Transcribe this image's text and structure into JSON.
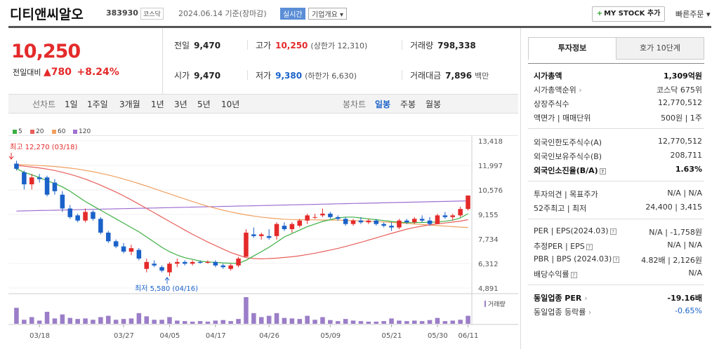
{
  "header": {
    "stock_name": "디티앤씨알오",
    "stock_code": "383930",
    "market": "코스닥",
    "date": "2024.06.14 기준(장마감)",
    "realtime_label": "실시간",
    "overview_label": "기업개요 ▾",
    "mystock_label": "MY STOCK 추가",
    "mystock_plus": "+",
    "quick_order": "빠른주문 ▾"
  },
  "price": {
    "current": "10,250",
    "change_label": "전일대비",
    "change_arrow": "▲",
    "change": "780",
    "change_pct": "+8.24%"
  },
  "quotes": {
    "prev_label": "전일",
    "prev": "9,470",
    "high_label": "고가",
    "high": "10,250",
    "high_limit": "(상한가 12,310)",
    "volume_label": "거래량",
    "volume": "798,338",
    "open_label": "시가",
    "open": "9,470",
    "low_label": "저가",
    "low": "9,380",
    "low_limit": "(하한가 6,630)",
    "amount_label": "거래대금",
    "amount": "7,896",
    "amount_unit": "백만"
  },
  "period_bar": {
    "line_label": "선차트",
    "periods": [
      "1일",
      "1주일",
      "3개월",
      "1년",
      "3년",
      "5년",
      "10년"
    ],
    "candle_label": "봉차트",
    "candles": [
      "일봉",
      "주봉",
      "월봉"
    ],
    "active_candle": "일봉"
  },
  "legend": [
    {
      "label": "5",
      "color": "#3cb043"
    },
    {
      "label": "20",
      "color": "#e8605c"
    },
    {
      "label": "60",
      "color": "#f0a060"
    },
    {
      "label": "120",
      "color": "#a070d0"
    }
  ],
  "chart_data": {
    "type": "candlestick",
    "y_ticks": [
      "13,418",
      "11,997",
      "10,576",
      "9,155",
      "7,734",
      "6,312",
      "4,891"
    ],
    "x_ticks": [
      "03/18",
      "03/27",
      "04/05",
      "04/17",
      "04/26",
      "05/09",
      "05/21",
      "05/30",
      "06/11"
    ],
    "max_label": "최고 12,270 (03/18)",
    "min_label": "최저 5,580 (04/16)",
    "volume_label": "거래량",
    "up_color": "#e42a2a",
    "down_color": "#1a62c9",
    "candles": [
      {
        "o": 12100,
        "h": 12270,
        "l": 11700,
        "c": 11800
      },
      {
        "o": 11600,
        "h": 11700,
        "l": 10600,
        "c": 10900
      },
      {
        "o": 10900,
        "h": 11500,
        "l": 10600,
        "c": 11300
      },
      {
        "o": 11300,
        "h": 11500,
        "l": 11000,
        "c": 11200
      },
      {
        "o": 11300,
        "h": 11400,
        "l": 10200,
        "c": 10300
      },
      {
        "o": 11000,
        "h": 11200,
        "l": 10300,
        "c": 10500
      },
      {
        "o": 10300,
        "h": 10500,
        "l": 9300,
        "c": 9500
      },
      {
        "o": 9500,
        "h": 9700,
        "l": 8900,
        "c": 9000
      },
      {
        "o": 9100,
        "h": 9200,
        "l": 8700,
        "c": 8800
      },
      {
        "o": 8800,
        "h": 9500,
        "l": 8700,
        "c": 9300
      },
      {
        "o": 9300,
        "h": 9400,
        "l": 8800,
        "c": 8900
      },
      {
        "o": 8900,
        "h": 9000,
        "l": 8000,
        "c": 8100
      },
      {
        "o": 8100,
        "h": 8200,
        "l": 7500,
        "c": 7600
      },
      {
        "o": 7600,
        "h": 7700,
        "l": 7200,
        "c": 7300
      },
      {
        "o": 7300,
        "h": 7500,
        "l": 6900,
        "c": 7000
      },
      {
        "o": 7000,
        "h": 7400,
        "l": 6800,
        "c": 7200
      },
      {
        "o": 7100,
        "h": 7200,
        "l": 6500,
        "c": 6600
      },
      {
        "o": 6000,
        "h": 6600,
        "l": 5800,
        "c": 6400
      },
      {
        "o": 6300,
        "h": 6500,
        "l": 6100,
        "c": 6200
      },
      {
        "o": 6100,
        "h": 6200,
        "l": 5800,
        "c": 5900
      },
      {
        "o": 5800,
        "h": 6400,
        "l": 5580,
        "c": 6300
      },
      {
        "o": 6300,
        "h": 6600,
        "l": 6100,
        "c": 6400
      },
      {
        "o": 6400,
        "h": 6500,
        "l": 6200,
        "c": 6300
      },
      {
        "o": 6300,
        "h": 6500,
        "l": 6200,
        "c": 6400
      },
      {
        "o": 6400,
        "h": 6500,
        "l": 6300,
        "c": 6350
      },
      {
        "o": 6350,
        "h": 6500,
        "l": 6300,
        "c": 6400
      },
      {
        "o": 6400,
        "h": 6500,
        "l": 6100,
        "c": 6200
      },
      {
        "o": 6200,
        "h": 6300,
        "l": 6000,
        "c": 6100
      },
      {
        "o": 6000,
        "h": 6300,
        "l": 5900,
        "c": 6200
      },
      {
        "o": 6200,
        "h": 6700,
        "l": 6100,
        "c": 6600
      },
      {
        "o": 6700,
        "h": 8300,
        "l": 6700,
        "c": 8100
      },
      {
        "o": 8000,
        "h": 8400,
        "l": 7800,
        "c": 7900
      },
      {
        "o": 7900,
        "h": 8100,
        "l": 7700,
        "c": 8000
      },
      {
        "o": 7900,
        "h": 8300,
        "l": 7700,
        "c": 7800
      },
      {
        "o": 7900,
        "h": 8700,
        "l": 7700,
        "c": 8600
      },
      {
        "o": 8500,
        "h": 8700,
        "l": 8200,
        "c": 8300
      },
      {
        "o": 8300,
        "h": 8700,
        "l": 8100,
        "c": 8600
      },
      {
        "o": 8500,
        "h": 8900,
        "l": 8400,
        "c": 8800
      },
      {
        "o": 8800,
        "h": 9200,
        "l": 8600,
        "c": 9100
      },
      {
        "o": 9000,
        "h": 9200,
        "l": 8900,
        "c": 9000
      },
      {
        "o": 9100,
        "h": 9500,
        "l": 9000,
        "c": 9200
      },
      {
        "o": 9200,
        "h": 9300,
        "l": 8900,
        "c": 9000
      },
      {
        "o": 9000,
        "h": 9100,
        "l": 8800,
        "c": 8900
      },
      {
        "o": 8900,
        "h": 9000,
        "l": 8500,
        "c": 8600
      },
      {
        "o": 8600,
        "h": 8900,
        "l": 8500,
        "c": 8800
      },
      {
        "o": 8800,
        "h": 9000,
        "l": 8600,
        "c": 8700
      },
      {
        "o": 8700,
        "h": 8900,
        "l": 8600,
        "c": 8800
      },
      {
        "o": 8800,
        "h": 8900,
        "l": 8500,
        "c": 8600
      },
      {
        "o": 8600,
        "h": 8700,
        "l": 8400,
        "c": 8500
      },
      {
        "o": 8500,
        "h": 8700,
        "l": 8200,
        "c": 8400
      },
      {
        "o": 8400,
        "h": 8900,
        "l": 8300,
        "c": 8800
      },
      {
        "o": 8800,
        "h": 8900,
        "l": 8600,
        "c": 8700
      },
      {
        "o": 8700,
        "h": 9000,
        "l": 8600,
        "c": 8900
      },
      {
        "o": 8900,
        "h": 9100,
        "l": 8700,
        "c": 8800
      },
      {
        "o": 8800,
        "h": 9000,
        "l": 8500,
        "c": 8600
      },
      {
        "o": 8600,
        "h": 9200,
        "l": 8600,
        "c": 9100
      },
      {
        "o": 9100,
        "h": 9300,
        "l": 8900,
        "c": 9000
      },
      {
        "o": 9000,
        "h": 9200,
        "l": 8800,
        "c": 9100
      },
      {
        "o": 9100,
        "h": 9600,
        "l": 9000,
        "c": 9470
      },
      {
        "o": 9470,
        "h": 10250,
        "l": 9380,
        "c": 10250
      }
    ],
    "volumes": [
      60,
      15,
      25,
      12,
      45,
      20,
      35,
      22,
      18,
      20,
      15,
      25,
      30,
      15,
      18,
      20,
      40,
      28,
      15,
      15,
      25,
      12,
      10,
      8,
      10,
      8,
      12,
      14,
      10,
      18,
      100,
      40,
      25,
      30,
      40,
      22,
      20,
      18,
      30,
      15,
      25,
      14,
      10,
      18,
      12,
      10,
      8,
      8,
      10,
      20,
      12,
      10,
      12,
      10,
      14,
      22,
      10,
      12,
      15,
      30
    ],
    "ma5": [
      11800,
      11600,
      11450,
      11300,
      11100,
      10950,
      10750,
      10500,
      10200,
      9900,
      9650,
      9400,
      9150,
      8900,
      8650,
      8400,
      8150,
      7850,
      7550,
      7250,
      7000,
      6800,
      6650,
      6550,
      6450,
      6400,
      6380,
      6350,
      6330,
      6320,
      6500,
      6750,
      7000,
      7250,
      7550,
      7850,
      8050,
      8250,
      8450,
      8600,
      8750,
      8850,
      8950,
      9000,
      9000,
      8950,
      8900,
      8850,
      8800,
      8750,
      8700,
      8680,
      8680,
      8690,
      8700,
      8720,
      8760,
      8820,
      8950,
      9200
    ],
    "ma20": [
      12000,
      11950,
      11900,
      11850,
      11780,
      11700,
      11600,
      11480,
      11350,
      11200,
      11030,
      10850,
      10650,
      10450,
      10230,
      10000,
      9750,
      9500,
      9250,
      9000,
      8750,
      8500,
      8250,
      8000,
      7780,
      7560,
      7350,
      7150,
      6950,
      6800,
      6650,
      6600,
      6580,
      6600,
      6620,
      6660,
      6700,
      6760,
      6830,
      6910,
      7000,
      7090,
      7190,
      7300,
      7420,
      7540,
      7670,
      7800,
      7930,
      8060,
      8180,
      8300,
      8400,
      8480,
      8550,
      8610,
      8660,
      8710,
      8770,
      8850
    ],
    "ma60": [
      12050,
      12030,
      12010,
      11990,
      11960,
      11930,
      11890,
      11840,
      11780,
      11710,
      11630,
      11540,
      11440,
      11330,
      11210,
      11080,
      10940,
      10800,
      10650,
      10500,
      10350,
      10200,
      10050,
      9900,
      9760,
      9630,
      9510,
      9400,
      9300,
      9210,
      9130,
      9060,
      9000,
      8950,
      8910,
      8880,
      8860,
      8850,
      8840,
      8840,
      8830,
      8830,
      8820,
      8810,
      8800,
      8780,
      8760,
      8740,
      8720,
      8690,
      8660,
      8630,
      8600,
      8570,
      8540,
      8510,
      8480,
      8450,
      8420,
      8400
    ],
    "ma120": [
      9350,
      9360,
      9370,
      9380,
      9390,
      9400,
      9410,
      9420,
      9430,
      9440,
      9450,
      9460,
      9470,
      9480,
      9490,
      9500,
      9510,
      9520,
      9530,
      9540,
      9550,
      9560,
      9570,
      9580,
      9590,
      9600,
      9610,
      9620,
      9630,
      9640,
      9650,
      9660,
      9670,
      9680,
      9690,
      9700,
      9710,
      9720,
      9730,
      9740,
      9750,
      9760,
      9770,
      9780,
      9790,
      9800,
      9810,
      9820,
      9830,
      9840,
      9850,
      9860,
      9870,
      9880,
      9890,
      9900,
      9910,
      9920,
      9930,
      9940
    ]
  },
  "right_panel": {
    "tab_invest": "투자정보",
    "tab_order": "호가 10단계",
    "rows": {
      "mktcap_k": "시가총액",
      "mktcap_v": "1,309억원",
      "rank_k": "시가총액순위",
      "rank_arrow": "›",
      "rank_v": "코스닥 675위",
      "shares_k": "상장주식수",
      "shares_v": "12,770,512",
      "par_k": "액면가 | 매매단위",
      "par_v": "500원 | 1주",
      "foreign_limit_k": "외국인한도주식수(A)",
      "foreign_limit_v": "12,770,512",
      "foreign_hold_k": "외국인보유주식수(B)",
      "foreign_hold_v": "208,711",
      "foreign_ratio_k": "외국인소진율(B/A)",
      "foreign_ratio_v": "1.63%",
      "opinion_k": "투자의견 | 목표주가",
      "opinion_v": "N/A | N/A",
      "w52_k": "52주최고 | 최저",
      "w52_v": "24,400 | 3,415",
      "per_k": "PER | EPS(2024.03)",
      "per_v": "N/A | -1,758원",
      "est_k": "추정PER | EPS",
      "est_v": "N/A | N/A",
      "pbr_k": "PBR | BPS (2024.03)",
      "pbr_v": "4.82배 | 2,126원",
      "div_k": "배당수익률",
      "div_v": "N/A",
      "ind_per_k": "동일업종 PER",
      "ind_per_v": "-19.16배",
      "ind_chg_k": "동일업종 등락률",
      "ind_chg_v": "-0.65%",
      "help": "?"
    }
  }
}
